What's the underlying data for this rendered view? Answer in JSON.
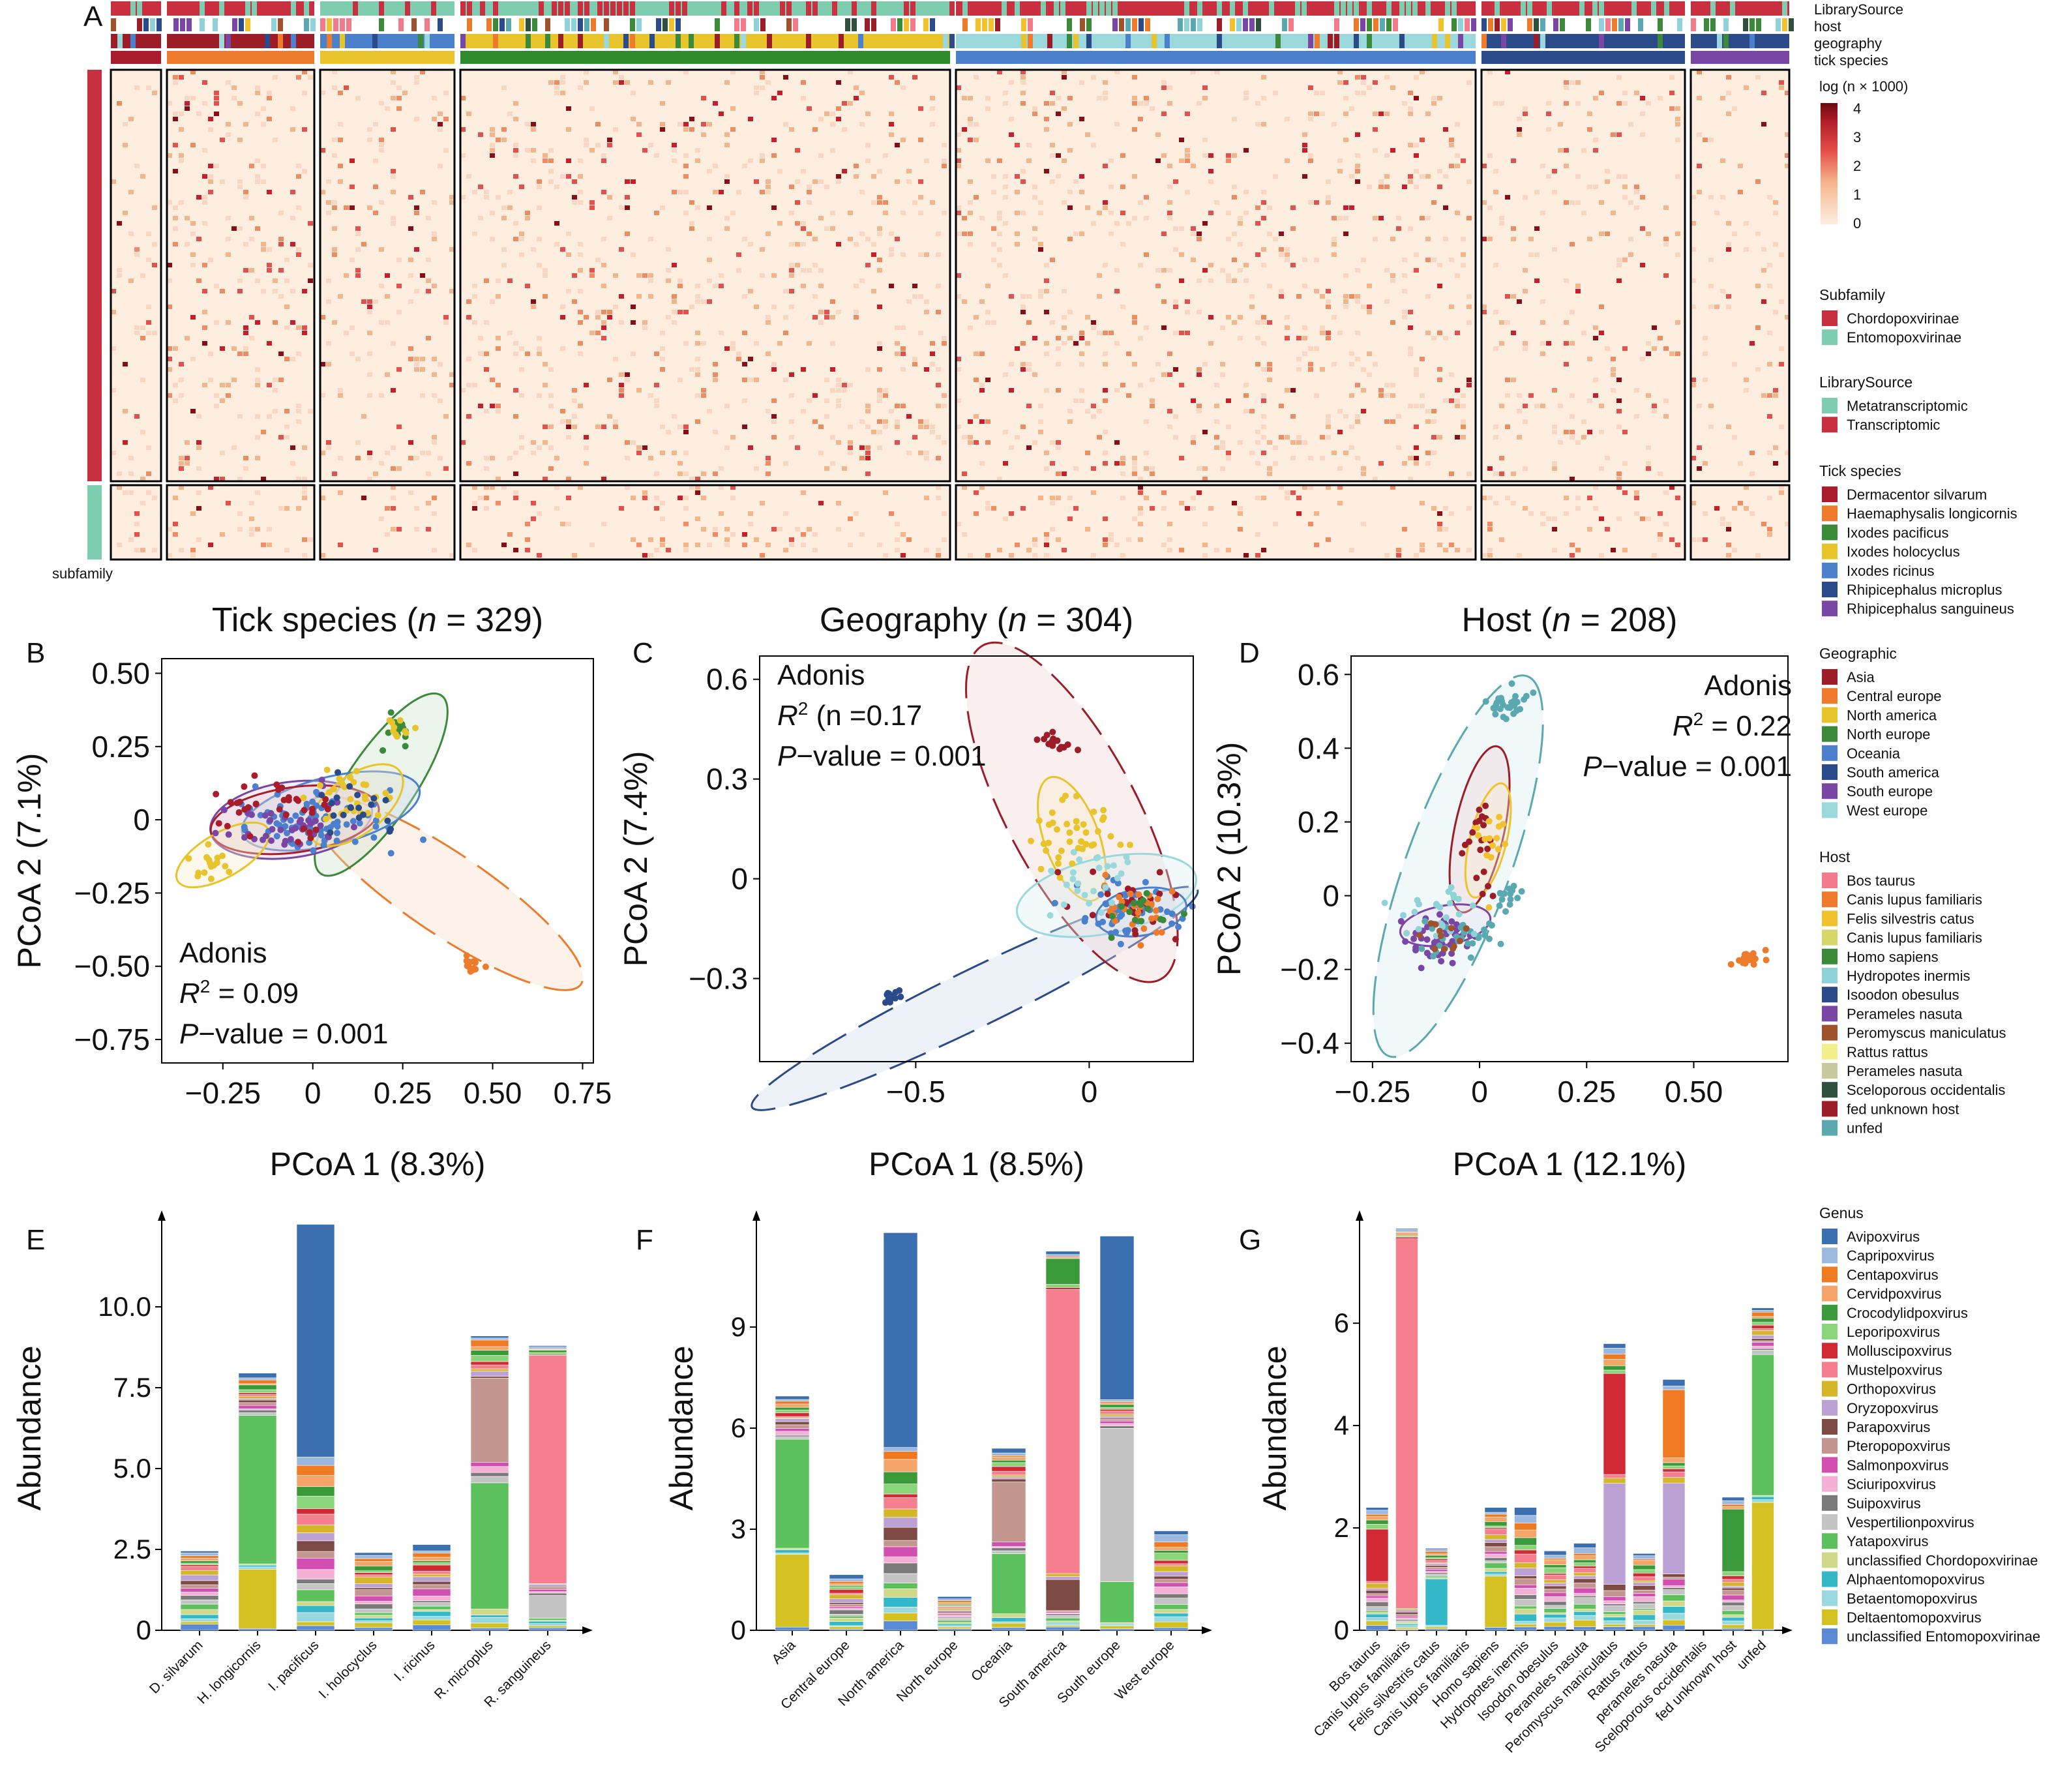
{
  "panel_labels": [
    "A",
    "B",
    "C",
    "D",
    "E",
    "F",
    "G"
  ],
  "heatmap": {
    "annotation_tracks": [
      "LibrarySource",
      "host",
      "geography",
      "tick species"
    ],
    "row_annotation_label": "subfamily",
    "color_legend_title": "log (n × 1000)",
    "color_ticks": [
      "0",
      "1",
      "2",
      "3",
      "4"
    ],
    "colors": {
      "low": "#fdeee0",
      "mid": "#f08b62",
      "high": "#6b0a10"
    },
    "subfamily_colors": {
      "Chordopoxvirinae": "#c8303f",
      "Entomopoxvirinae": "#7fcdb1"
    }
  },
  "legends": {
    "subfamily": {
      "title": "Subfamily",
      "items": [
        {
          "label": "Chordopoxvirinae",
          "color": "#c8303f"
        },
        {
          "label": "Entomopoxvirinae",
          "color": "#7fcdb1"
        }
      ]
    },
    "library": {
      "title": "LibrarySource",
      "items": [
        {
          "label": "Metatranscriptomic",
          "color": "#7fcdb1"
        },
        {
          "label": "Transcriptomic",
          "color": "#c8303f"
        }
      ]
    },
    "tick": {
      "title": "Tick species",
      "items": [
        {
          "label": "Dermacentor silvarum",
          "color": "#a81c2c"
        },
        {
          "label": "Haemaphysalis longicornis",
          "color": "#ee7b2c"
        },
        {
          "label": "Ixodes pacificus",
          "color": "#3a8a3a"
        },
        {
          "label": "Ixodes holocyclus",
          "color": "#e8c42c"
        },
        {
          "label": "Ixodes ricinus",
          "color": "#4a80cc"
        },
        {
          "label": "Rhipicephalus microplus",
          "color": "#2a4a8a"
        },
        {
          "label": "Rhipicephalus sanguineus",
          "color": "#7a46a6"
        }
      ]
    },
    "geographic": {
      "title": "Geographic",
      "items": [
        {
          "label": "Asia",
          "color": "#9c1c28"
        },
        {
          "label": "Central europe",
          "color": "#ee7b2c"
        },
        {
          "label": "North america",
          "color": "#e8c42c"
        },
        {
          "label": "North europe",
          "color": "#3a8a3a"
        },
        {
          "label": "Oceania",
          "color": "#4a80cc"
        },
        {
          "label": "South america",
          "color": "#2a4a8a"
        },
        {
          "label": "South europe",
          "color": "#7a46a6"
        },
        {
          "label": "West europe",
          "color": "#9ad8dc"
        }
      ]
    },
    "host": {
      "title": "Host",
      "items": [
        {
          "label": "Bos taurus",
          "color": "#f37a8a"
        },
        {
          "label": "Canis lupus familiaris",
          "color": "#ee7b2c"
        },
        {
          "label": "Felis silvestris catus",
          "color": "#f2c12e"
        },
        {
          "label": "Canis lupus familiaris",
          "color": "#d6d66a"
        },
        {
          "label": "Homo sapiens",
          "color": "#3a8a3a"
        },
        {
          "label": "Hydropotes inermis",
          "color": "#8fd3d8"
        },
        {
          "label": "Isoodon obesulus",
          "color": "#2a4a8a"
        },
        {
          "label": "Perameles nasuta",
          "color": "#7a46a6"
        },
        {
          "label": "Peromyscus maniculatus",
          "color": "#a0522d"
        },
        {
          "label": "Rattus rattus",
          "color": "#f2ee8a"
        },
        {
          "label": "Perameles nasuta",
          "color": "#c9c9a0"
        },
        {
          "label": "Sceloporous occidentalis",
          "color": "#2f4f3f"
        },
        {
          "label": "fed unknown host",
          "color": "#9c1c28"
        },
        {
          "label": "unfed",
          "color": "#5aa9b0"
        }
      ]
    },
    "genus": {
      "title": "Genus",
      "items": [
        {
          "label": "Avipoxvirus",
          "color": "#3b6fb0"
        },
        {
          "label": "Capripoxvirus",
          "color": "#9ab8e0"
        },
        {
          "label": "Centapoxvirus",
          "color": "#f07a22"
        },
        {
          "label": "Cervidpoxvirus",
          "color": "#f6a56a"
        },
        {
          "label": "Crocodylidpoxvirus",
          "color": "#3a9a3a"
        },
        {
          "label": "Leporipoxvirus",
          "color": "#8ad47a"
        },
        {
          "label": "Molluscipoxvirus",
          "color": "#d22a34"
        },
        {
          "label": "Mustelpoxvirus",
          "color": "#f57f8e"
        },
        {
          "label": "Orthopoxvirus",
          "color": "#d4b628"
        },
        {
          "label": "Oryzopoxvirus",
          "color": "#bba1d4"
        },
        {
          "label": "Parapoxvirus",
          "color": "#7d4a44"
        },
        {
          "label": "Pteropopoxvirus",
          "color": "#c49690"
        },
        {
          "label": "Salmonpoxvirus",
          "color": "#d24eb0"
        },
        {
          "label": "Sciuripoxvirus",
          "color": "#f4b0d4"
        },
        {
          "label": "Suipoxvirus",
          "color": "#7a7a7a"
        },
        {
          "label": "Vespertilionpoxvirus",
          "color": "#c4c4c4"
        },
        {
          "label": "Yatapoxvirus",
          "color": "#5cc05c"
        },
        {
          "label": "unclassified Chordopoxvirinae",
          "color": "#d0d88a"
        },
        {
          "label": "Alphaentomopoxvirus",
          "color": "#34b8c8"
        },
        {
          "label": "Betaentomopoxvirus",
          "color": "#9ad8e0"
        },
        {
          "label": "Deltaentomopoxvirus",
          "color": "#d4c020"
        },
        {
          "label": "unclassified Entomopoxvirinae",
          "color": "#5a8ad4"
        }
      ]
    }
  },
  "pcoa": {
    "B": {
      "title_pre": "Tick species (",
      "title_n": "n",
      "title_post": " = 329)",
      "xlabel": "PCoA 1 (8.3%)",
      "ylabel": "PCoA 2 (7.1%)",
      "adonis": "Adonis",
      "r2_pre": "R",
      "r2_post": " = 0.09",
      "p_pre": "P",
      "p_post": "−value = 0.001",
      "xticks": [
        "−0.25",
        "0",
        "0.25",
        "0.50",
        "0.75"
      ],
      "yticks": [
        "0.50",
        "0.25",
        "0",
        "−0.25",
        "−0.50",
        "−0.75"
      ]
    },
    "C": {
      "title_pre": "Geography (",
      "title_n": "n",
      "title_post": " = 304)",
      "xlabel": "PCoA 1 (8.5%)",
      "ylabel": "PCoA 2 (7.4%)",
      "adonis": "Adonis",
      "r2_pre": "R",
      "r2_post": " (n =0.17",
      "p_pre": "P",
      "p_post": "−value = 0.001",
      "xticks": [
        "−0.5",
        "0"
      ],
      "yticks": [
        "0.6",
        "0.3",
        "0",
        "−0.3"
      ]
    },
    "D": {
      "title_pre": "Host (",
      "title_n": "n",
      "title_post": " = 208)",
      "xlabel": "PCoA 1 (12.1%)",
      "ylabel": "PCoA 2 (10.3%)",
      "adonis": "Adonis",
      "r2_pre": "R",
      "r2_post": " = 0.22",
      "p_pre": "P",
      "p_post": "−value = 0.001",
      "xticks": [
        "−0.25",
        "0",
        "0.25",
        "0.50"
      ],
      "yticks": [
        "0.6",
        "0.4",
        "0.2",
        "0",
        "−0.2",
        "−0.4"
      ]
    }
  },
  "chart_data": [
    {
      "panel": "E",
      "type": "bar",
      "stacked": true,
      "ylabel": "Abundance",
      "ylim": [
        0,
        12.5
      ],
      "yticks": [
        "0",
        "2.5",
        "5.0",
        "7.5",
        "10.0"
      ],
      "categories": [
        "D. silvarum",
        "H. longicornis",
        "I. pacificus",
        "I. holocyclus",
        "I. ricinus",
        "R. microplus",
        "R. sanguineus"
      ],
      "totals": [
        2.45,
        7.95,
        12.55,
        2.4,
        2.65,
        9.1,
        8.8
      ]
    },
    {
      "panel": "F",
      "type": "bar",
      "stacked": true,
      "ylabel": "Abundance",
      "ylim": [
        0,
        12
      ],
      "yticks": [
        "0",
        "3",
        "6",
        "9"
      ],
      "categories": [
        "Asia",
        "Central europe",
        "North america",
        "North europe",
        "Oceania",
        "South america",
        "South europe",
        "West europe"
      ],
      "totals": [
        6.95,
        1.65,
        11.8,
        1.0,
        5.4,
        11.25,
        11.7,
        2.95
      ]
    },
    {
      "panel": "G",
      "type": "bar",
      "stacked": true,
      "ylabel": "Abundance",
      "ylim": [
        0,
        7.9
      ],
      "yticks": [
        "0",
        "2",
        "4",
        "6"
      ],
      "categories": [
        "Bos taurus",
        "Canis lupus familiaris",
        "Felis silvestris catus",
        "Canis lupus familiaris",
        "Homo sapiens",
        "Hydropotes inermis",
        "Isoodon obesulus",
        "Perameles nasuta",
        "Peromyscus maniculatus",
        "Rattus rattus",
        "perameles nasuta",
        "Sceloporous occidentalis",
        "fed unknown host",
        "unfed"
      ],
      "totals": [
        2.4,
        7.85,
        1.6,
        0,
        2.4,
        2.4,
        1.55,
        1.7,
        5.6,
        1.5,
        4.9,
        0,
        2.6,
        6.3
      ]
    }
  ]
}
